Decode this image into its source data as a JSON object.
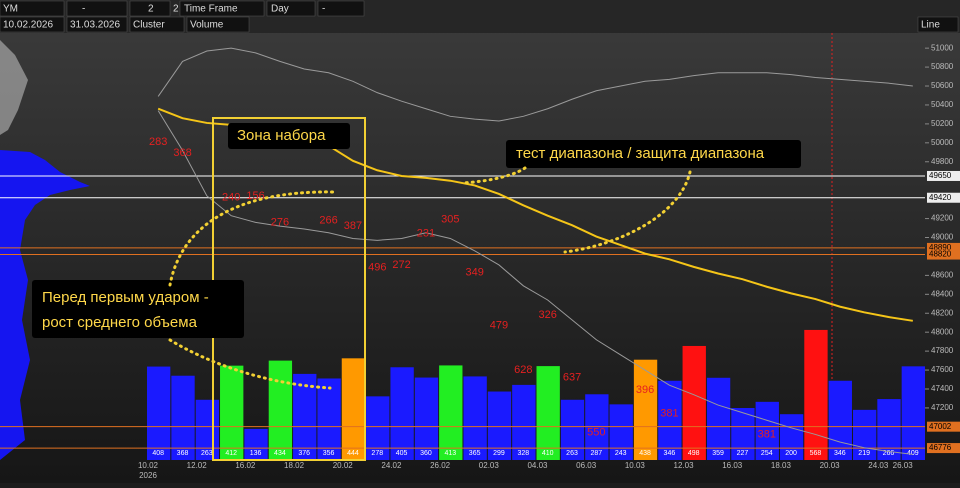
{
  "toolbar": {
    "symbol": "YM",
    "field1": "-",
    "count": "2",
    "count_step": "2",
    "timeframe_label": "Time Frame",
    "timeframe": "Day",
    "field2": "-",
    "start_date": "10.02.2026",
    "end_date": "31.03.2026",
    "chart_mode": "Cluster",
    "cluster_mode": "Volume",
    "line_mode": "Line"
  },
  "chart_data": {
    "type": "bar",
    "categories": [
      "10.02",
      null,
      "12.02",
      null,
      "16.02",
      null,
      "18.02",
      null,
      "20.02",
      null,
      "24.02",
      null,
      "26.02",
      null,
      "02.03",
      null,
      "04.03",
      null,
      "06.03",
      null,
      "10.03",
      null,
      "12.03",
      null,
      "16.03",
      null,
      "18.03",
      null,
      "20.03",
      null,
      "24.03",
      "26.03"
    ],
    "x_year": "2026",
    "values": [
      408,
      368,
      263,
      412,
      136,
      434,
      376,
      356,
      444,
      278,
      405,
      360,
      413,
      365,
      299,
      328,
      410,
      263,
      287,
      243,
      438,
      346,
      498,
      359,
      227,
      254,
      200,
      568,
      346,
      219,
      266,
      409
    ],
    "colors": [
      "#1a1aff",
      "#1a1aff",
      "#1a1aff",
      "#22ee22",
      "#1a1aff",
      "#22ee22",
      "#1a1aff",
      "#1a1aff",
      "#ff9900",
      "#1a1aff",
      "#1a1aff",
      "#1a1aff",
      "#22ee22",
      "#1a1aff",
      "#1a1aff",
      "#1a1aff",
      "#22ee22",
      "#1a1aff",
      "#1a1aff",
      "#1a1aff",
      "#ff9900",
      "#1a1aff",
      "#ff1111",
      "#1a1aff",
      "#1a1aff",
      "#1a1aff",
      "#1a1aff",
      "#ff1111",
      "#1a1aff",
      "#1a1aff",
      "#1a1aff",
      "#1a1aff"
    ],
    "cluster_values": [
      283,
      368,
      null,
      240,
      156,
      276,
      null,
      266,
      387,
      496,
      272,
      231,
      305,
      349,
      479,
      628,
      326,
      637,
      550,
      null,
      396,
      381,
      null,
      null,
      null,
      381,
      null,
      null,
      null,
      null,
      null,
      null
    ],
    "cluster_prices": [
      50010,
      49890,
      null,
      49420,
      49440,
      49160,
      null,
      49180,
      49120,
      48680,
      48710,
      49040,
      49190,
      48630,
      48070,
      47600,
      48180,
      47520,
      46940,
      null,
      47390,
      47140,
      null,
      null,
      null,
      46920,
      null,
      null,
      null,
      null,
      null,
      null
    ],
    "lines": [
      {
        "color": "#f5c518",
        "values": [
          50360,
          50260,
          50210,
          50190,
          50170,
          50150,
          50130,
          49970,
          49810,
          49710,
          49650,
          49630,
          49600,
          49550,
          49460,
          49340,
          49230,
          49130,
          49010,
          48920,
          48830,
          48770,
          48690,
          48620,
          48560,
          48480,
          48410,
          48350,
          48270,
          48210,
          48160,
          48120
        ]
      },
      {
        "color": "#9a9a9a",
        "values": [
          50490,
          50860,
          50970,
          51000,
          50950,
          50860,
          50780,
          50740,
          50650,
          50530,
          50440,
          50360,
          50280,
          50250,
          50230,
          50280,
          50360,
          50460,
          50550,
          50600,
          50650,
          50670,
          50710,
          50740,
          50740,
          50740,
          50720,
          50690,
          50670,
          50650,
          50630,
          50600
        ]
      },
      {
        "color": "#9a9a9a",
        "values": [
          50340,
          49920,
          49440,
          49230,
          49160,
          49120,
          49090,
          49050,
          48990,
          48970,
          48990,
          49050,
          48990,
          48860,
          48710,
          48490,
          48340,
          48130,
          47920,
          47760,
          47600,
          47440,
          47340,
          47230,
          47150,
          47070,
          46990,
          46920,
          46840,
          46780,
          46740,
          46710
        ]
      }
    ],
    "ylim": [
      46650,
      51160
    ],
    "yticks": [
      51000,
      50800,
      50600,
      50400,
      50200,
      50000,
      49800,
      49200,
      49000,
      48600,
      48400,
      48200,
      48000,
      47800,
      47600,
      47400,
      47200
    ],
    "levels": [
      {
        "value": 49650,
        "color": "#ffffff"
      },
      {
        "value": 49420,
        "color": "#ffffff"
      },
      {
        "value": 48890,
        "color": "#e07020"
      },
      {
        "value": 48820,
        "color": "#e07020"
      },
      {
        "value": 47002,
        "color": "#e07020"
      },
      {
        "value": 46776,
        "color": "#e07020"
      }
    ],
    "annotations": [
      "Зона набора",
      "тест диапазона / защита диапазона",
      "Перед первым ударом -",
      "рост среднего объема"
    ]
  }
}
